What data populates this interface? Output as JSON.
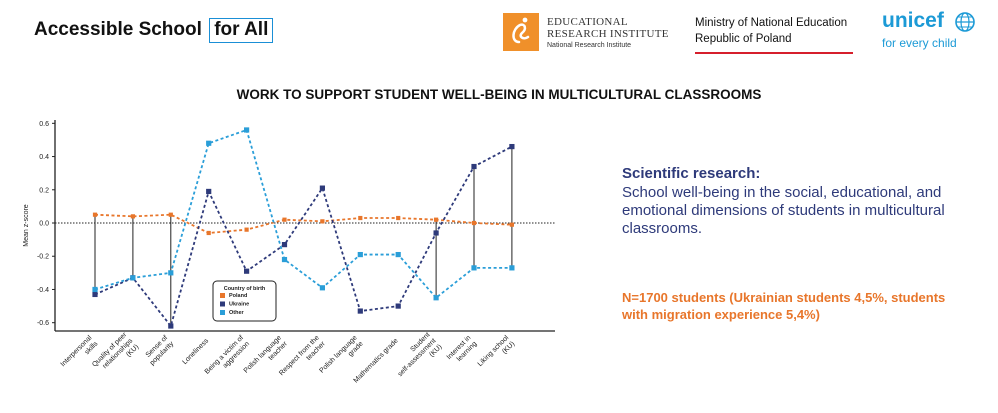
{
  "header": {
    "title_main": "Accessible School",
    "title_boxed": "for All"
  },
  "logos": {
    "ibe": {
      "line1": "EDUCATIONAL",
      "line2": "RESEARCH INSTITUTE",
      "line3": "National Research Institute",
      "mark_color": "#f0902a"
    },
    "ministry": {
      "line1": "Ministry of National Education",
      "line2": "Republic of Poland",
      "flag_color": "#d61f2c"
    },
    "unicef": {
      "name": "unicef",
      "tagline": "for every child",
      "color": "#1c9ad6",
      "icon": "globe-icon"
    }
  },
  "side": {
    "heading": "Scientific research:",
    "text": "School well-being in the social, educational, and emotional dimensions of students in multicultural classrooms.",
    "sample": "N=1700 students (Ukrainian students 4,5%, students with migration experience 5,4%)",
    "heading_color": "#2e3a7a",
    "sample_color": "#e8762b"
  },
  "chart_data": {
    "type": "line",
    "title": "WORK TO SUPPORT STUDENT WELL-BEING IN MULTICULTURAL CLASSROOMS",
    "ylabel": "Mean z-score",
    "xlabel": "",
    "ylim": [
      -0.65,
      0.62
    ],
    "yticks": [
      "0.6",
      "0.4",
      "0.2",
      "0.0",
      "-0.2",
      "-0.4",
      "-0.6"
    ],
    "zero_line": true,
    "connectors": [
      0,
      1,
      2,
      9,
      10,
      11,
      12,
      13
    ],
    "categories": [
      "Interpersonal skills",
      "Quality of peer relationships (KU)",
      "Sense of popularity",
      "Loneliness",
      "Being a victim of aggression",
      "Polish language teacher",
      "Respect from the teacher",
      "Polish language grade",
      "Mathematics grade",
      "Student self-assessment (KU)",
      "Interest in learning",
      "Liking school (KU)"
    ],
    "series": [
      {
        "name": "Poland",
        "color": "#e8762b",
        "values": [
          0.05,
          0.04,
          0.05,
          -0.06,
          -0.04,
          0.02,
          0.01,
          0.03,
          0.03,
          0.02,
          0.0,
          -0.01
        ]
      },
      {
        "name": "Ukraine",
        "color": "#2e3a7a",
        "values": [
          -0.43,
          -0.33,
          -0.62,
          0.19,
          -0.29,
          -0.13,
          0.21,
          -0.53,
          -0.5,
          -0.06,
          0.34,
          0.46
        ]
      },
      {
        "name": "Other",
        "color": "#2a9ed8",
        "values": [
          -0.4,
          -0.33,
          -0.3,
          0.48,
          0.56,
          -0.22,
          -0.39,
          -0.19,
          -0.19,
          -0.45,
          -0.27,
          -0.27
        ]
      }
    ],
    "legend": {
      "title": "Country of birth",
      "placement": "bottom-center"
    }
  }
}
